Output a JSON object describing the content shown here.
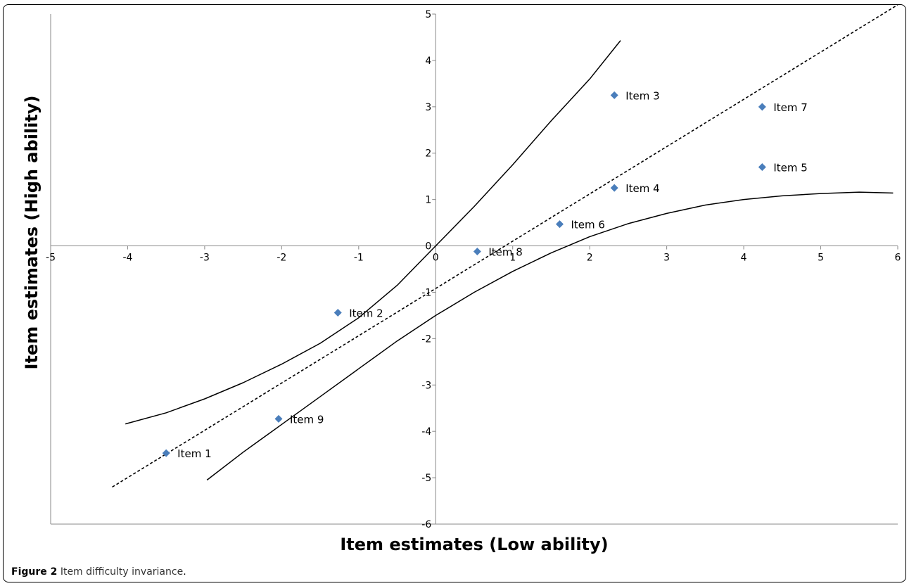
{
  "caption": {
    "label": "Figure 2",
    "title": "Item difficulty invariance",
    "end": "."
  },
  "chart_data": {
    "type": "scatter",
    "title": "",
    "xlabel": "Item estimates (Low ability)",
    "ylabel": "Item estimates (High ability)",
    "xlim": [
      -5,
      6
    ],
    "ylim": [
      -6,
      5
    ],
    "x_ticks": [
      -5,
      -4,
      -3,
      -2,
      -1,
      0,
      1,
      2,
      3,
      4,
      5,
      6
    ],
    "y_ticks": [
      -6,
      -5,
      -4,
      -3,
      -2,
      -1,
      0,
      1,
      2,
      3,
      4,
      5
    ],
    "grid": false,
    "marker_color": "#4a7ebb",
    "points": [
      {
        "label": "Item 1",
        "x": -3.5,
        "y": -4.47
      },
      {
        "label": "Item 2",
        "x": -1.27,
        "y": -1.44
      },
      {
        "label": "Item 3",
        "x": 2.32,
        "y": 3.25
      },
      {
        "label": "Item 4",
        "x": 2.32,
        "y": 1.25
      },
      {
        "label": "Item 5",
        "x": 4.24,
        "y": 1.7
      },
      {
        "label": "Item 6",
        "x": 1.61,
        "y": 0.47
      },
      {
        "label": "Item 7",
        "x": 4.24,
        "y": 3.0
      },
      {
        "label": "Item 8",
        "x": 0.54,
        "y": -0.12
      },
      {
        "label": "Item 9",
        "x": -2.04,
        "y": -3.73
      }
    ],
    "reference_line": {
      "style": "dashed",
      "x": [
        -4.2,
        6
      ],
      "y": [
        -5.2,
        5.2
      ]
    },
    "upper_confidence_curve": {
      "style": "solid",
      "x": [
        -4.03,
        -3.5,
        -3.0,
        -2.5,
        -2.0,
        -1.5,
        -1.0,
        -0.5,
        0.0,
        0.5,
        1.0,
        1.5,
        2.0,
        2.4
      ],
      "y": [
        -3.84,
        -3.6,
        -3.3,
        -2.95,
        -2.55,
        -2.1,
        -1.55,
        -0.85,
        0.0,
        0.85,
        1.75,
        2.7,
        3.6,
        4.43
      ]
    },
    "lower_confidence_curve": {
      "style": "solid",
      "x": [
        -2.97,
        -2.5,
        -2.0,
        -1.5,
        -1.0,
        -0.5,
        0.0,
        0.5,
        1.0,
        1.5,
        2.0,
        2.5,
        3.0,
        3.5,
        4.0,
        4.5,
        5.0,
        5.5,
        5.94
      ],
      "y": [
        -5.05,
        -4.45,
        -3.85,
        -3.25,
        -2.65,
        -2.05,
        -1.5,
        -1.0,
        -0.55,
        -0.15,
        0.2,
        0.48,
        0.7,
        0.88,
        1.0,
        1.08,
        1.13,
        1.16,
        1.14
      ]
    }
  }
}
